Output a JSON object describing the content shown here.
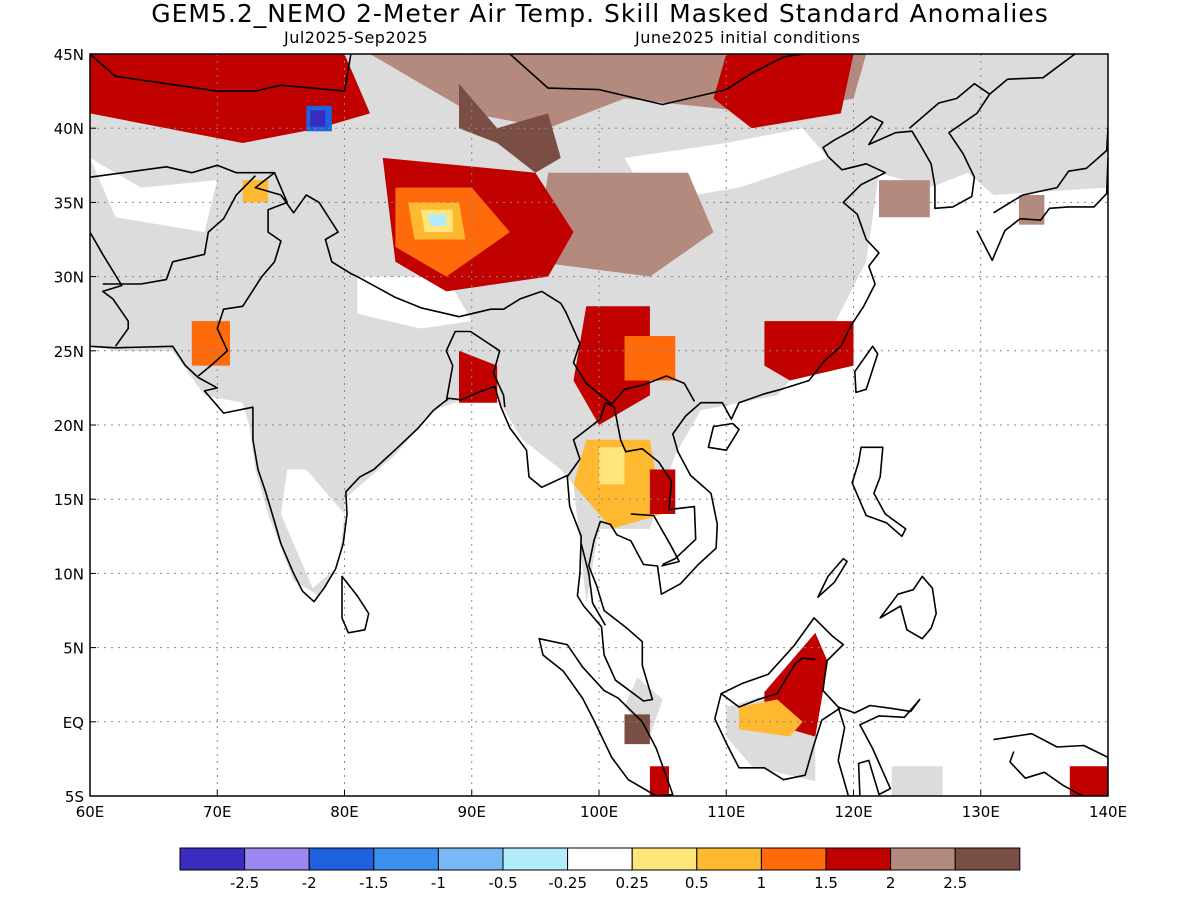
{
  "header": {
    "title": "GEM5.2_NEMO 2-Meter Air Temp. Skill Masked Standard Anomalies",
    "subtitle_left": "Jul2025-Sep2025",
    "subtitle_right": "June2025 initial conditions"
  },
  "map": {
    "lon_range": [
      60,
      140
    ],
    "lat_range": [
      -5,
      45
    ],
    "x_tick_labels": [
      "60E",
      "70E",
      "80E",
      "90E",
      "100E",
      "110E",
      "120E",
      "130E",
      "140E"
    ],
    "y_tick_labels": [
      "5S",
      "EQ",
      "5N",
      "10N",
      "15N",
      "20N",
      "25N",
      "30N",
      "35N",
      "40N",
      "45N"
    ],
    "grid": "dotted",
    "masked_fill_color": "#dcdcdc"
  },
  "colorbar": {
    "colors": [
      "#3b2cc0",
      "#9d86f2",
      "#1e62e0",
      "#3c90f0",
      "#78b8f6",
      "#b2ecf8",
      "#ffffff",
      "#ffe57a",
      "#ffb931",
      "#ff6a0a",
      "#c10000",
      "#b58a7e",
      "#7a4e44"
    ],
    "labels": [
      "-2.5",
      "-2",
      "-1.5",
      "-1",
      "-0.5",
      "-0.25",
      "0.25",
      "0.5",
      "1",
      "1.5",
      "2",
      "2.5"
    ]
  }
}
